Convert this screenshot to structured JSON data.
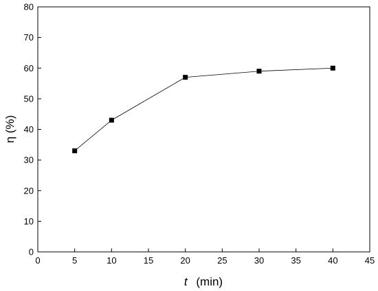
{
  "chart_data": {
    "type": "line",
    "xlabel_var": "t",
    "xlabel_unit": "(min)",
    "ylabel": "η (%)",
    "xlim": [
      0,
      45
    ],
    "ylim": [
      0,
      80
    ],
    "x_ticks": [
      0,
      5,
      10,
      15,
      20,
      25,
      30,
      35,
      40,
      45
    ],
    "y_ticks": [
      0,
      10,
      20,
      30,
      40,
      50,
      60,
      70,
      80
    ],
    "grid": false,
    "series": [
      {
        "x": [
          5,
          10,
          20,
          30,
          40
        ],
        "y": [
          33,
          43,
          57,
          59,
          60
        ],
        "marker": "square",
        "color": "#000000"
      }
    ]
  }
}
